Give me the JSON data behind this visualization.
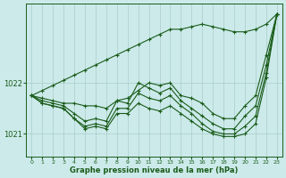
{
  "bg_color": "#cceaea",
  "grid_color": "#aacccc",
  "line_color": "#1a5c1a",
  "xlabel": "Graphe pression niveau de la mer (hPa)",
  "xlim": [
    -0.5,
    23.5
  ],
  "ylim": [
    1020.55,
    1023.55
  ],
  "yticks": [
    1021,
    1022
  ],
  "xticks": [
    0,
    1,
    2,
    3,
    4,
    5,
    6,
    7,
    8,
    9,
    10,
    11,
    12,
    13,
    14,
    15,
    16,
    17,
    18,
    19,
    20,
    21,
    22,
    23
  ],
  "series": [
    [
      1021.75,
      1021.7,
      1021.65,
      1021.6,
      1021.6,
      1021.55,
      1021.55,
      1021.5,
      1021.65,
      1021.7,
      1021.85,
      1022.0,
      1021.95,
      1022.0,
      1021.75,
      1021.7,
      1021.6,
      1021.4,
      1021.3,
      1021.3,
      1021.55,
      1021.75,
      1022.55,
      1023.35
    ],
    [
      1021.75,
      1021.65,
      1021.6,
      1021.55,
      1021.4,
      1021.25,
      1021.3,
      1021.25,
      1021.65,
      1021.6,
      1022.0,
      1021.9,
      1021.8,
      1021.9,
      1021.65,
      1021.5,
      1021.35,
      1021.2,
      1021.1,
      1021.1,
      1021.35,
      1021.55,
      1022.35,
      1023.35
    ],
    [
      1021.75,
      1021.6,
      1021.55,
      1021.5,
      1021.3,
      1021.15,
      1021.2,
      1021.15,
      1021.5,
      1021.5,
      1021.8,
      1021.7,
      1021.65,
      1021.75,
      1021.55,
      1021.4,
      1021.2,
      1021.05,
      1021.0,
      1021.0,
      1021.15,
      1021.35,
      1022.2,
      1023.35
    ],
    [
      1021.75,
      1021.6,
      1021.55,
      1021.5,
      1021.3,
      1021.1,
      1021.15,
      1021.1,
      1021.4,
      1021.4,
      1021.6,
      1021.5,
      1021.45,
      1021.55,
      1021.4,
      1021.25,
      1021.1,
      1021.0,
      1020.95,
      1020.95,
      1021.0,
      1021.2,
      1022.1,
      1023.35
    ],
    [
      1021.75,
      1021.85,
      1021.95,
      1022.05,
      1022.15,
      1022.25,
      1022.35,
      1022.45,
      1022.55,
      1022.65,
      1022.75,
      1022.85,
      1022.95,
      1023.05,
      1023.05,
      1023.1,
      1023.15,
      1023.1,
      1023.05,
      1023.0,
      1023.0,
      1023.05,
      1023.15,
      1023.35
    ]
  ]
}
